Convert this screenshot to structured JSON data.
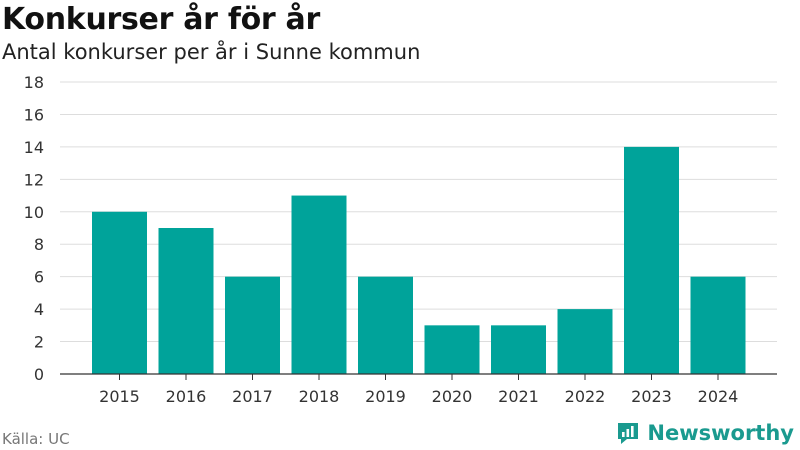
{
  "header": {
    "title": "Konkurser år för år",
    "subtitle": "Antal konkurser per år i Sunne kommun"
  },
  "footer": {
    "source": "Källa: UC",
    "brand": "Newsworthy"
  },
  "colors": {
    "bar": "#00a39a",
    "brand": "#1a9a8f"
  },
  "icons": {
    "brand_logo": "newsworthy-logo-icon"
  },
  "chart_data": {
    "type": "bar",
    "categories": [
      "2015",
      "2016",
      "2017",
      "2018",
      "2019",
      "2020",
      "2021",
      "2022",
      "2023",
      "2024"
    ],
    "values": [
      10,
      9,
      6,
      11,
      6,
      3,
      3,
      4,
      14,
      6
    ],
    "yticks": [
      "0",
      "2",
      "4",
      "6",
      "8",
      "10",
      "12",
      "14",
      "16",
      "18"
    ],
    "ylim": [
      0,
      18
    ],
    "grid": true,
    "legend": "none"
  }
}
